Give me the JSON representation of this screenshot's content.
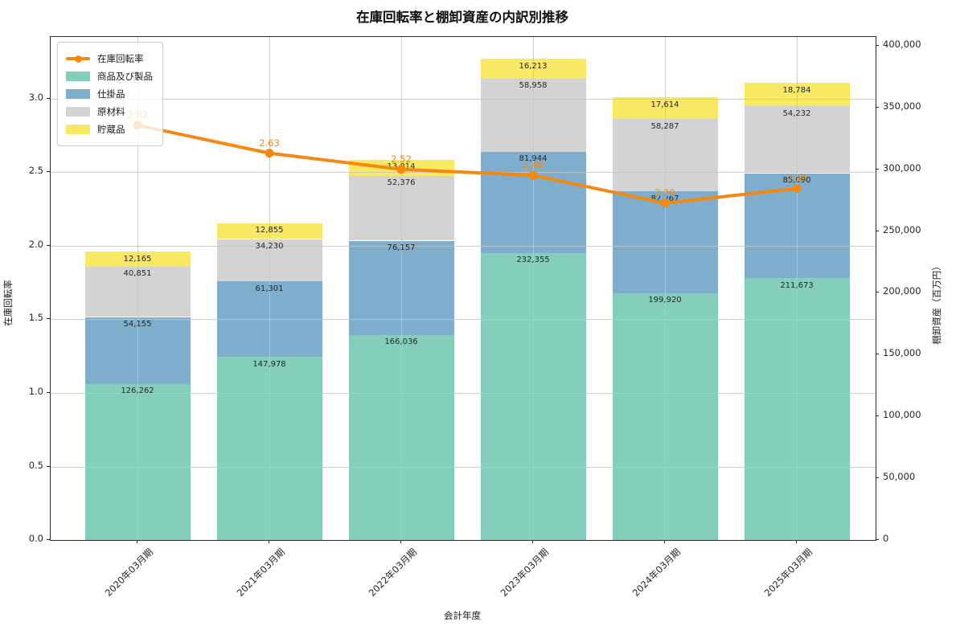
{
  "title": "在庫回転率と棚卸資産の内訳別推移",
  "x_axis": {
    "label": "会計年度"
  },
  "y_left_axis": {
    "label": "在庫回転率",
    "tick_labels": [
      "0.0",
      "0.5",
      "1.0",
      "1.5",
      "2.0",
      "2.5",
      "3.0"
    ],
    "tick_values": [
      0,
      0.5,
      1.0,
      1.5,
      2.0,
      2.5,
      3.0
    ],
    "max": 3.42
  },
  "y_right_axis": {
    "label": "棚卸資産（百万円）",
    "tick_labels": [
      "0",
      "50,000",
      "100,000",
      "150,000",
      "200,000",
      "250,000",
      "300,000",
      "350,000",
      "400,000"
    ],
    "tick_values": [
      0,
      50000,
      100000,
      150000,
      200000,
      250000,
      300000,
      350000,
      400000
    ],
    "max": 407000
  },
  "legend": {
    "items": [
      {
        "label": "在庫回転率",
        "type": "line",
        "color": "#f5880f"
      },
      {
        "label": "商品及び製品",
        "type": "patch",
        "color": "#86cebc"
      },
      {
        "label": "仕掛品",
        "type": "patch",
        "color": "#7faecd"
      },
      {
        "label": "原材料",
        "type": "patch",
        "color": "#d3d3d3"
      },
      {
        "label": "貯蔵品",
        "type": "patch",
        "color": "#f8e864"
      }
    ]
  },
  "chart_data": {
    "type": "bar",
    "subtype": "stacked-bar-with-line",
    "categories": [
      "2020年03月期",
      "2021年03月期",
      "2022年03月期",
      "2023年03月期",
      "2024年03月期",
      "2025年03月期"
    ],
    "series": [
      {
        "name": "商品及び製品",
        "color": "#86cebc",
        "values": [
          126262,
          147978,
          166036,
          232355,
          199920,
          211673
        ]
      },
      {
        "name": "仕掛品",
        "color": "#7faecd",
        "values": [
          54155,
          61301,
          76157,
          81944,
          82267,
          85090
        ]
      },
      {
        "name": "原材料",
        "color": "#d3d3d3",
        "values": [
          40851,
          34230,
          52376,
          58958,
          58287,
          54232
        ]
      },
      {
        "name": "貯蔵品",
        "color": "#f8e864",
        "values": [
          12165,
          12855,
          13014,
          16213,
          17614,
          18784
        ]
      }
    ],
    "line": {
      "name": "在庫回転率",
      "color": "#f5880f",
      "values": [
        2.82,
        2.63,
        2.52,
        2.48,
        2.29,
        2.39
      ]
    },
    "title": "在庫回転率と棚卸資産の内訳別推移",
    "xlabel": "会計年度",
    "ylabel_left": "在庫回転率",
    "ylabel_right": "棚卸資産（百万円）",
    "ylim_left": [
      0,
      3.42
    ],
    "ylim_right": [
      0,
      407000
    ],
    "grid": true,
    "legend_position": "upper-left",
    "bar_totals": [
      233433,
      256364,
      307583,
      389470,
      358088,
      369779
    ]
  }
}
